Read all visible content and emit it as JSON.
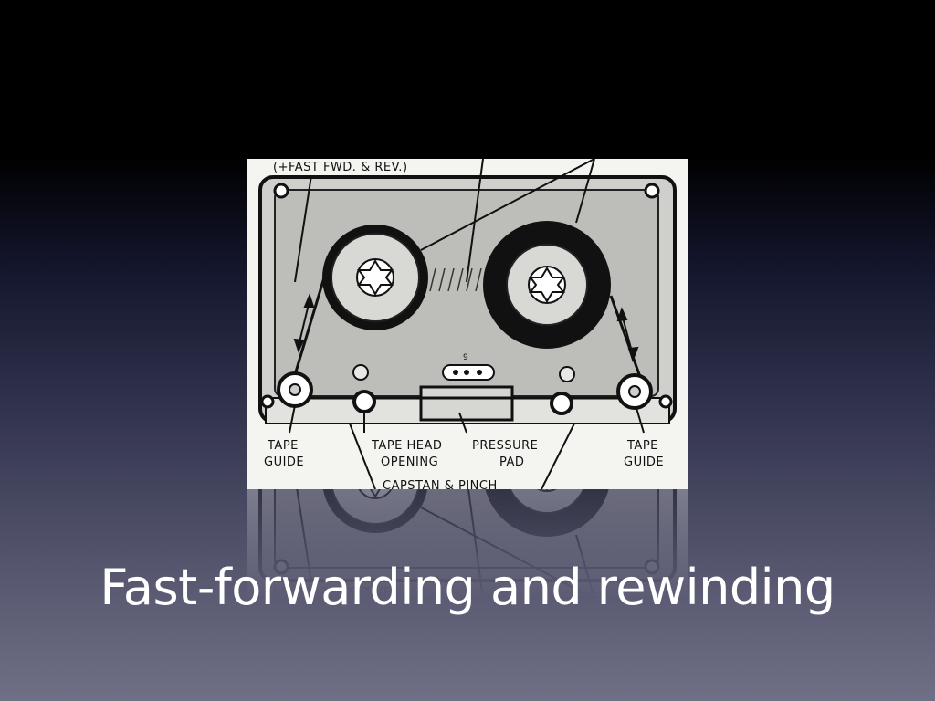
{
  "slide": {
    "title": "Fast-forwarding and rewinding"
  },
  "diagram": {
    "top_label": "(+FAST FWD. & REV.)",
    "left_guide": [
      "TAPE",
      "GUIDE"
    ],
    "tape_head_opening": [
      "TAPE HEAD",
      "OPENING"
    ],
    "pressure_pad": [
      "PRESSURE",
      "PAD"
    ],
    "right_guide": [
      "TAPE",
      "GUIDE"
    ],
    "capstan_label": "CAPSTAN & PINCH",
    "small_mark": "9"
  }
}
